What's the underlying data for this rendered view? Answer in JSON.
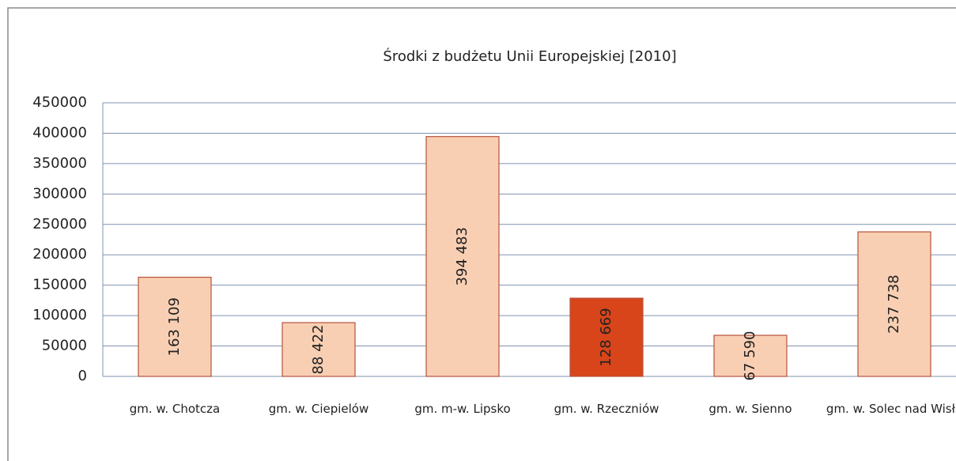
{
  "chart_data": {
    "type": "bar",
    "title": "Środki z budżetu Unii Europejskiej [2010]",
    "categories": [
      "gm. w. Chotcza",
      "gm. w. Ciepielów",
      "gm. m-w. Lipsko",
      "gm. w. Rzeczniów",
      "gm. w. Sienno",
      "gm. w. Solec nad Wisłą"
    ],
    "values": [
      163109,
      88422,
      394483,
      128669,
      67590,
      237738
    ],
    "value_labels": [
      "163 109",
      "88 422",
      "394 483",
      "128 669",
      "67 590",
      "237 738"
    ],
    "colors": [
      "#f9cfb3",
      "#f9cfb3",
      "#f9cfb3",
      "#d8451b",
      "#f9cfb3",
      "#f9cfb3"
    ],
    "ylim": [
      0,
      450000
    ],
    "yticks": [
      0,
      50000,
      100000,
      150000,
      200000,
      250000,
      300000,
      350000,
      400000,
      450000
    ],
    "grid": true
  }
}
